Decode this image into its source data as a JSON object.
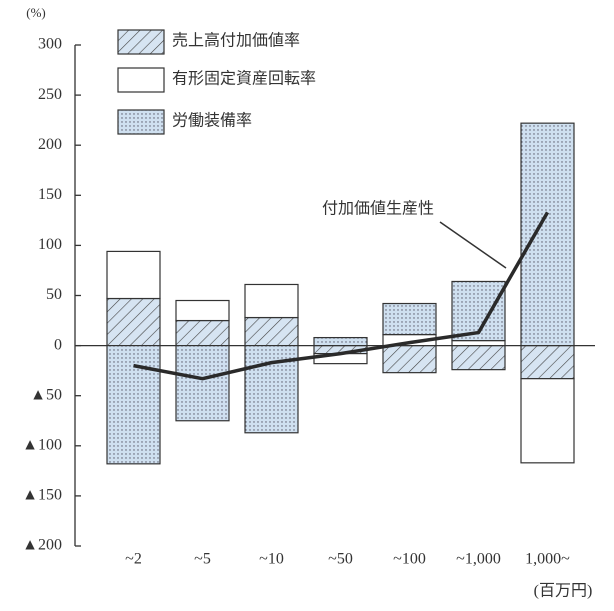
{
  "chart_data": {
    "type": "bar",
    "stacked": true,
    "y_unit": "(%)",
    "x_unit": "(百万円)",
    "categories": [
      "~2",
      "~5",
      "~10",
      "~50",
      "~100",
      "~1,000",
      "1,000~"
    ],
    "series": [
      {
        "name": "売上高付加価値率",
        "color": "#d6e4f2",
        "pattern": "hatch",
        "values": [
          47,
          25,
          28,
          -8,
          -27,
          -24,
          -33
        ]
      },
      {
        "name": "有形固定資産回転率",
        "color": "#ffffff",
        "pattern": "none",
        "values": [
          47,
          20,
          33,
          -10,
          11,
          5,
          -84
        ]
      },
      {
        "name": "労働装備率",
        "color": "#d6e4f2",
        "pattern": "dots",
        "values": [
          -118,
          -75,
          -87,
          8,
          31,
          59,
          222
        ]
      }
    ],
    "line_series": {
      "name": "付加価値生産性",
      "color": "#2a2a2a",
      "values": [
        -20,
        -33,
        -17,
        -8,
        3,
        13,
        133
      ]
    },
    "ylim": [
      -200,
      300
    ],
    "yticks": [
      {
        "value": -200,
        "label": "▲200"
      },
      {
        "value": -150,
        "label": "▲150"
      },
      {
        "value": -100,
        "label": "▲100"
      },
      {
        "value": -50,
        "label": "▲50"
      },
      0,
      50,
      100,
      150,
      200,
      250,
      300
    ]
  }
}
